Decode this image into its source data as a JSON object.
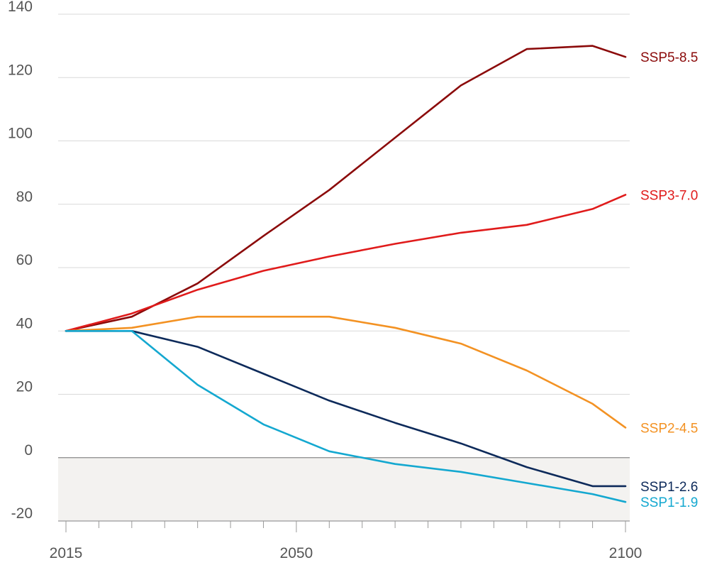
{
  "chart_data": {
    "type": "line",
    "title": "",
    "xlabel": "",
    "ylabel": "",
    "xlim": [
      2015,
      2100
    ],
    "ylim": [
      -20,
      140
    ],
    "yticks": [
      140,
      120,
      100,
      80,
      60,
      40,
      20,
      0,
      -20
    ],
    "xticks_labeled": [
      2015,
      2050,
      2100
    ],
    "x": [
      2015,
      2025,
      2035,
      2045,
      2055,
      2065,
      2075,
      2085,
      2095,
      2100
    ],
    "negative_region": true,
    "series": [
      {
        "name": "SSP5-8.5",
        "color": "#8B0A0A",
        "values": [
          40,
          44.5,
          55,
          70,
          84.5,
          101,
          117.5,
          129,
          130,
          126.5
        ]
      },
      {
        "name": "SSP3-7.0",
        "color": "#E01B1B",
        "values": [
          40,
          45.5,
          53,
          59,
          63.5,
          67.5,
          71,
          73.5,
          78.5,
          83
        ]
      },
      {
        "name": "SSP2-4.5",
        "color": "#F39223",
        "values": [
          40,
          41,
          44.5,
          44.5,
          44.5,
          41,
          36,
          27.5,
          17,
          9.5
        ]
      },
      {
        "name": "SSP1-2.6",
        "color": "#0D2A5A",
        "values": [
          40,
          40,
          35,
          26.5,
          18,
          11,
          4.5,
          -3,
          -9,
          -9
        ]
      },
      {
        "name": "SSP1-1.9",
        "color": "#14A8D0",
        "values": [
          40,
          40,
          23,
          10.5,
          2,
          -2,
          -4.5,
          -8,
          -11.5,
          -14
        ]
      }
    ]
  }
}
